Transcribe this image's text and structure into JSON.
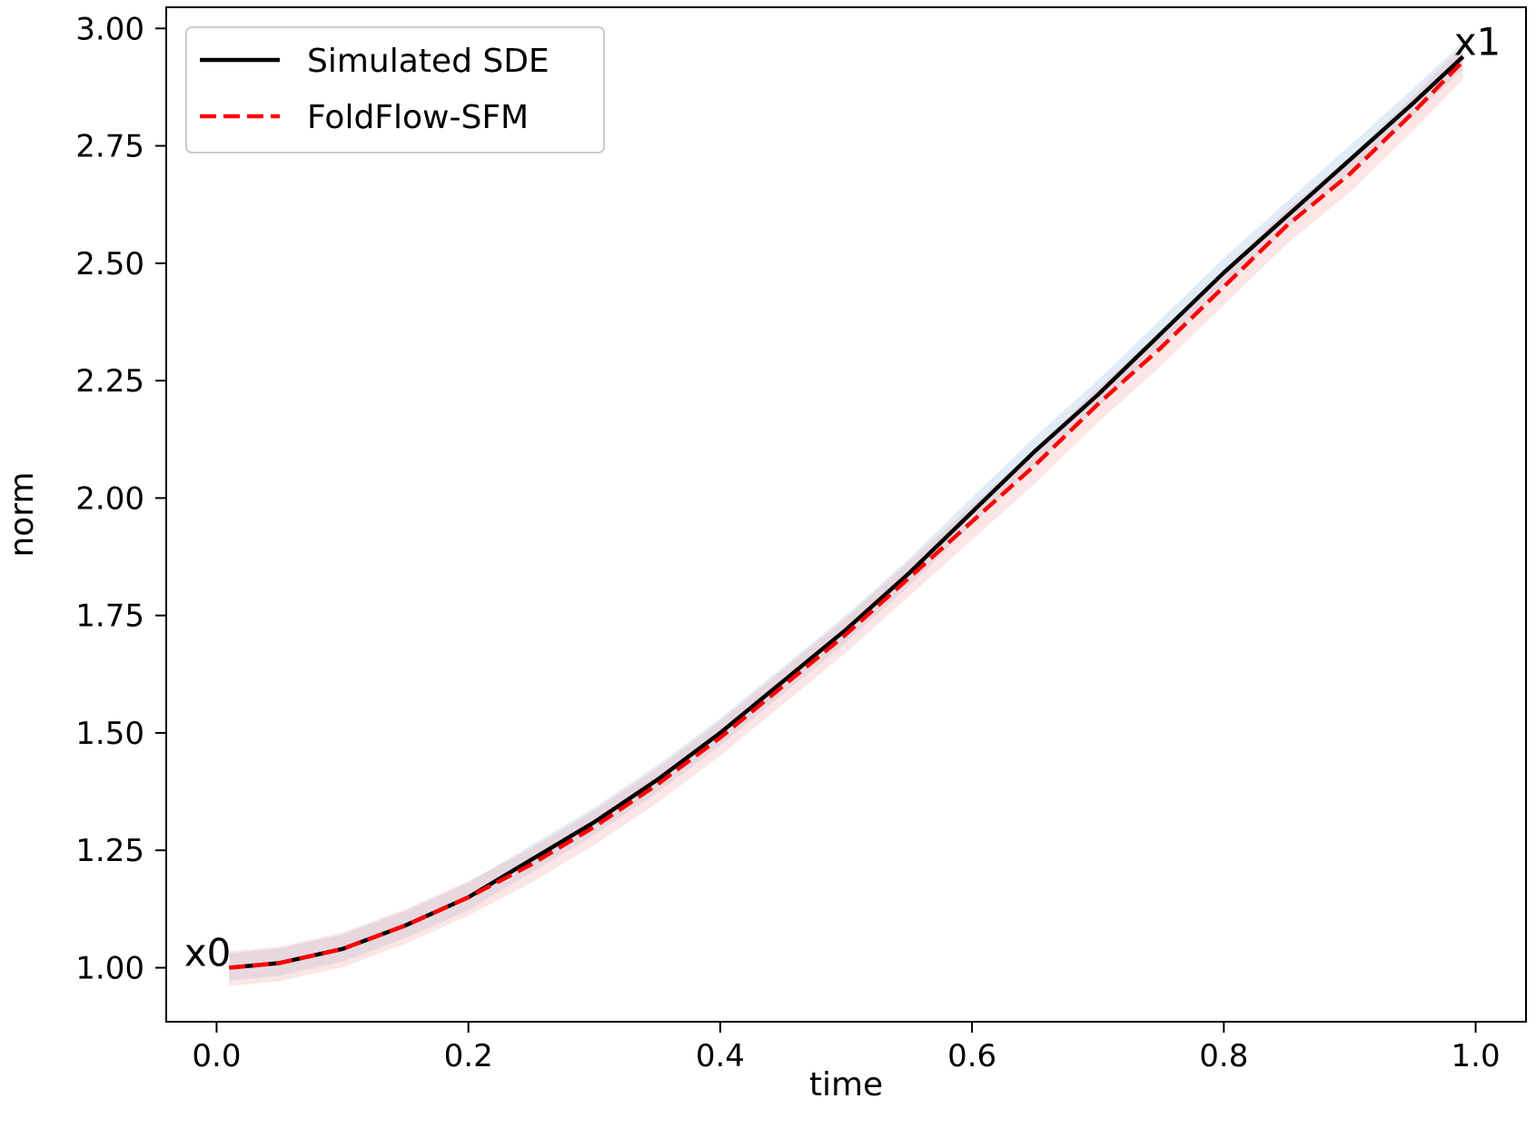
{
  "chart_data": {
    "type": "line",
    "title": "",
    "xlabel": "time",
    "ylabel": "norm",
    "xlim": [
      -0.04,
      1.04
    ],
    "ylim": [
      0.885,
      3.045
    ],
    "xticks": [
      0.0,
      0.2,
      0.4,
      0.6,
      0.8,
      1.0
    ],
    "xtick_labels": [
      "0.0",
      "0.2",
      "0.4",
      "0.6",
      "0.8",
      "1.0"
    ],
    "yticks": [
      1.0,
      1.25,
      1.5,
      1.75,
      2.0,
      2.25,
      2.5,
      2.75,
      3.0
    ],
    "ytick_labels": [
      "1.00",
      "1.25",
      "1.50",
      "1.75",
      "2.00",
      "2.25",
      "2.50",
      "2.75",
      "3.00"
    ],
    "grid": false,
    "legend_position": "top-left",
    "series": [
      {
        "name": "Simulated SDE",
        "color": "#000000",
        "style": "solid",
        "band_color": "#aac8e6",
        "x": [
          0.01,
          0.05,
          0.1,
          0.15,
          0.2,
          0.25,
          0.3,
          0.35,
          0.4,
          0.45,
          0.5,
          0.55,
          0.6,
          0.65,
          0.7,
          0.75,
          0.8,
          0.85,
          0.9,
          0.95,
          0.99
        ],
        "y": [
          1.0,
          1.01,
          1.04,
          1.09,
          1.15,
          1.23,
          1.31,
          1.4,
          1.5,
          1.61,
          1.72,
          1.84,
          1.97,
          2.1,
          2.22,
          2.35,
          2.48,
          2.6,
          2.72,
          2.84,
          2.94
        ]
      },
      {
        "name": "FoldFlow-SFM",
        "color": "#ff0000",
        "style": "dashed",
        "band_color": "#f4b4b4",
        "x": [
          0.01,
          0.05,
          0.1,
          0.15,
          0.2,
          0.25,
          0.3,
          0.35,
          0.4,
          0.45,
          0.5,
          0.55,
          0.6,
          0.65,
          0.7,
          0.75,
          0.8,
          0.85,
          0.9,
          0.95,
          0.99
        ],
        "y": [
          1.0,
          1.01,
          1.04,
          1.09,
          1.15,
          1.22,
          1.3,
          1.39,
          1.49,
          1.6,
          1.71,
          1.83,
          1.95,
          2.07,
          2.2,
          2.32,
          2.45,
          2.58,
          2.69,
          2.82,
          2.93
        ]
      }
    ],
    "annotations": [
      {
        "text": "x0",
        "x": 0.01,
        "y": 1.0
      },
      {
        "text": "x1",
        "x": 0.99,
        "y": 2.94
      }
    ]
  }
}
